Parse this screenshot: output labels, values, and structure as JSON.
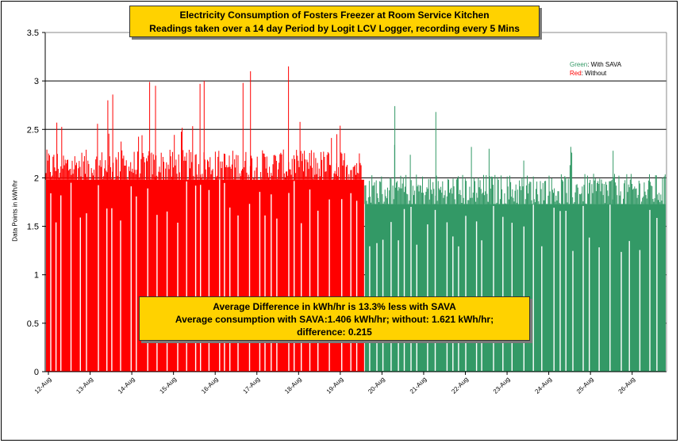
{
  "chart_data": {
    "type": "bar",
    "title_line1": "Electricity Consumption of Fosters Freezer at Room Service Kitchen",
    "title_line2": "Readings taken over a 14 day Period by Logit LCV Logger, recording every 5 Mins",
    "ylabel": "Data Points in kWh/hr",
    "ylim": [
      0,
      3.5
    ],
    "yticks": [
      "0",
      "0.5",
      "1",
      "1.5",
      "2",
      "2.5",
      "3",
      "3.5"
    ],
    "xticks": [
      "12-Aug",
      "13-Aug",
      "14-Aug",
      "15-Aug",
      "16-Aug",
      "17-Aug",
      "18-Aug",
      "19-Aug",
      "20-Aug",
      "21-Aug",
      "22-Aug",
      "23-Aug",
      "24-Aug",
      "25-Aug",
      "26-Aug"
    ],
    "grid": true,
    "legend": {
      "position": "top-right",
      "green_word": "Green",
      "green_rest": ": With SAVA",
      "red_word": "Red",
      "red_rest": ": Without"
    },
    "series": [
      {
        "label": "Without",
        "color": "#ff0000",
        "x_range": [
          "12-Aug",
          "19-Aug"
        ],
        "typical_value": 2.1,
        "peaks": [
          {
            "x": "12-Aug",
            "value": 2.57
          },
          {
            "x": "13-Aug",
            "value": 2.8
          },
          {
            "x": "13-Aug",
            "value": 2.86
          },
          {
            "x": "14-Aug",
            "value": 2.99
          },
          {
            "x": "14-Aug",
            "value": 2.95
          },
          {
            "x": "15-Aug",
            "value": 3.0
          },
          {
            "x": "15-Aug",
            "value": 2.97
          },
          {
            "x": "16-Aug",
            "value": 2.98
          },
          {
            "x": "16-Aug",
            "value": 3.1
          },
          {
            "x": "17-Aug",
            "value": 3.15
          },
          {
            "x": "18-Aug",
            "value": 2.45
          }
        ]
      },
      {
        "label": "With SAVA",
        "color": "#339966",
        "x_range": [
          "19-Aug",
          "26-Aug"
        ],
        "typical_value": 1.85,
        "peaks": [
          {
            "x": "20-Aug",
            "value": 2.74
          },
          {
            "x": "21-Aug",
            "value": 2.68
          },
          {
            "x": "22-Aug",
            "value": 2.3
          },
          {
            "x": "24-Aug",
            "value": 2.32
          },
          {
            "x": "25-Aug",
            "value": 2.28
          }
        ]
      }
    ],
    "annotation": {
      "line1": "Average Difference in kWh/hr is 13.3% less with SAVA",
      "line2": "Average consumption with SAVA:1.406 kWh/hr; without: 1.621 kWh/hr;",
      "line3": "difference: 0.215"
    }
  },
  "colors": {
    "red_series": "#ff0000",
    "green_series": "#339966",
    "box_fill": "#ffd200"
  }
}
